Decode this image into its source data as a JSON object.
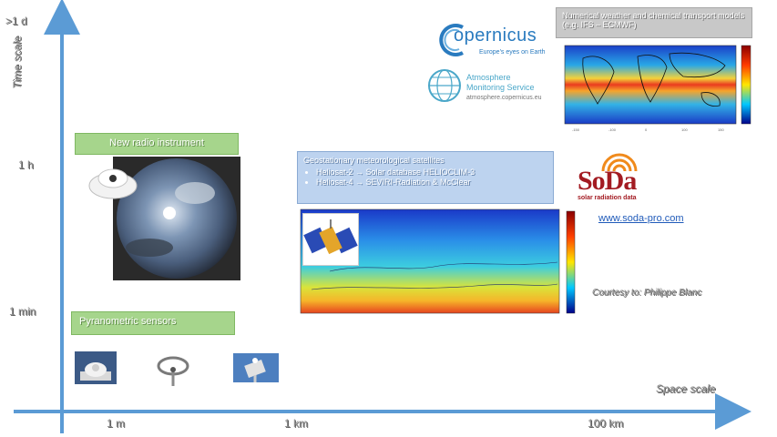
{
  "axes": {
    "y_title": "Time scale",
    "x_title": "Space scale",
    "y_ticks": [
      ">1 d",
      "1 h",
      "1 min"
    ],
    "x_ticks": [
      "1 m",
      "1 km",
      "100 km"
    ]
  },
  "labels": {
    "pyranometric": "Pyranometric sensors",
    "new_instrument": "New radio instrument",
    "satellite_title": "Geostationary meteorological satellites",
    "satellite_items": [
      "Heliosat-2 → Solar database HELIOCLIM-3",
      "Heliosat-4 → SEVIRI-Radiation & McClear"
    ],
    "nwp_title": "Numerical weather and chemical transport models (e.g. IFS – ECMWF)",
    "courtesy": "Courtesy to: Philippe Blanc",
    "soda_url": "www.soda-pro.com"
  },
  "logos": {
    "copernicus_name": "opernicus",
    "copernicus_tagline": "Europe's eyes on Earth",
    "cams_line1": "Atmosphere",
    "cams_line2": "Monitoring Service",
    "cams_url": "atmosphere.copernicus.eu",
    "soda_name": "SoDa",
    "soda_tagline": "solar radiation data"
  },
  "colors": {
    "axis": "#5b9bd5",
    "copernicus_blue": "#2a7bbf",
    "soda_red": "#a31b22",
    "soda_orange": "#f08a1c"
  }
}
